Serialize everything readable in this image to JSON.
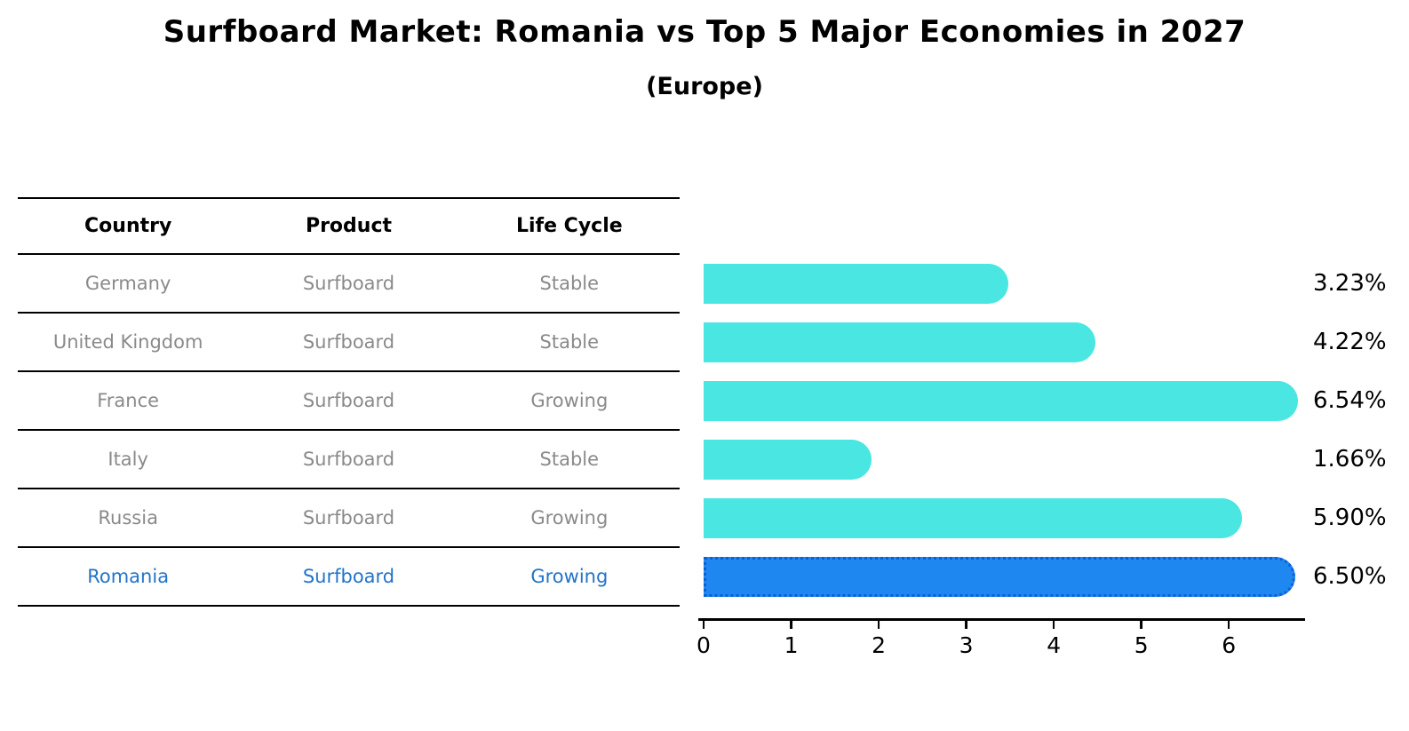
{
  "title": "Surfboard Market: Romania vs Top 5 Major Economies in 2027",
  "subtitle": "(Europe)",
  "table": {
    "headers": [
      "Country",
      "Product",
      "Life Cycle"
    ],
    "rows": [
      {
        "country": "Germany",
        "product": "Surfboard",
        "life_cycle": "Stable",
        "highlight": false
      },
      {
        "country": "United Kingdom",
        "product": "Surfboard",
        "life_cycle": "Stable",
        "highlight": false
      },
      {
        "country": "France",
        "product": "Surfboard",
        "life_cycle": "Growing",
        "highlight": false
      },
      {
        "country": "Italy",
        "product": "Surfboard",
        "life_cycle": "Stable",
        "highlight": false
      },
      {
        "country": "Russia",
        "product": "Surfboard",
        "life_cycle": "Growing",
        "highlight": false
      },
      {
        "country": "Romania",
        "product": "Surfboard",
        "life_cycle": "Growing",
        "highlight": true
      }
    ]
  },
  "chart_data": {
    "type": "bar",
    "orientation": "horizontal",
    "title": "Surfboard Market: Romania vs Top 5 Major Economies in 2027 (Europe)",
    "categories": [
      "Germany",
      "United Kingdom",
      "France",
      "Italy",
      "Russia",
      "Romania"
    ],
    "values": [
      3.23,
      4.22,
      6.54,
      1.66,
      5.9,
      6.5
    ],
    "value_labels": [
      "3.23%",
      "4.22%",
      "6.54%",
      "1.66%",
      "5.90%",
      "6.50%"
    ],
    "xlabel": "",
    "ylabel": "",
    "xlim": [
      0,
      6.86
    ],
    "x_ticks": [
      "0",
      "1",
      "2",
      "3",
      "4",
      "5",
      "6"
    ],
    "highlight_index": 5,
    "grid": false,
    "legend": false
  },
  "colors": {
    "bar": "#4AE6E2",
    "highlight_bar": "#1E87F0",
    "highlight_bar_border": "#0D5FD6",
    "table_text": "#8A8A8A",
    "highlight_text": "#2274C8",
    "line": "#000000"
  }
}
